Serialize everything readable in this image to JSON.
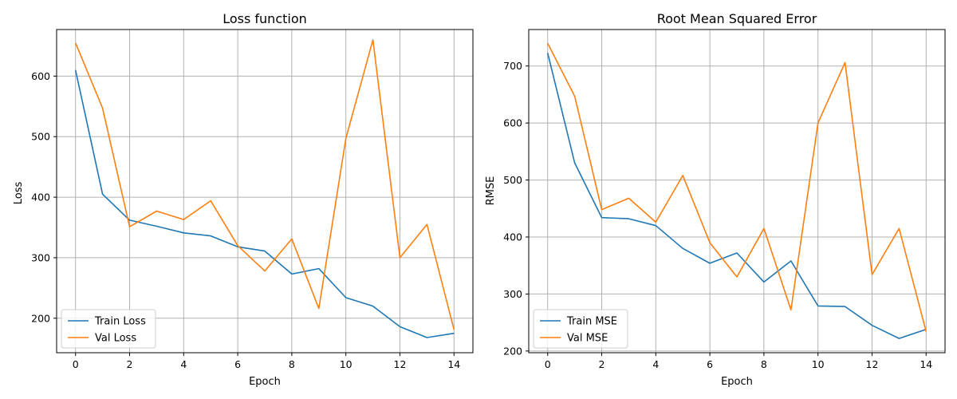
{
  "chart_data": [
    {
      "type": "line",
      "title": "Loss function",
      "xlabel": "Epoch",
      "ylabel": "Loss",
      "x": [
        0,
        1,
        2,
        3,
        4,
        5,
        6,
        7,
        8,
        9,
        10,
        11,
        12,
        13,
        14
      ],
      "xlim": [
        -0.7,
        14.7
      ],
      "ylim": [
        143,
        677
      ],
      "xticks": [
        0,
        2,
        4,
        6,
        8,
        10,
        12,
        14
      ],
      "yticks": [
        200,
        300,
        400,
        500,
        600
      ],
      "grid": true,
      "legend_position": "lower-left",
      "series": [
        {
          "name": "Train Loss",
          "color": "#1f77b4",
          "values": [
            610,
            405,
            362,
            352,
            341,
            336,
            318,
            311,
            273,
            282,
            234,
            220,
            186,
            168,
            175
          ]
        },
        {
          "name": "Val Loss",
          "color": "#ff7f0e",
          "values": [
            655,
            547,
            351,
            377,
            363,
            394,
            320,
            278,
            331,
            216,
            497,
            660,
            300,
            355,
            181
          ]
        }
      ]
    },
    {
      "type": "line",
      "title": "Root Mean Squared Error",
      "xlabel": "Epoch",
      "ylabel": "RMSE",
      "x": [
        0,
        1,
        2,
        3,
        4,
        5,
        6,
        7,
        8,
        9,
        10,
        11,
        12,
        13,
        14
      ],
      "xlim": [
        -0.7,
        14.7
      ],
      "ylim": [
        197,
        764
      ],
      "xticks": [
        0,
        2,
        4,
        6,
        8,
        10,
        12,
        14
      ],
      "yticks": [
        200,
        300,
        400,
        500,
        600,
        700
      ],
      "grid": true,
      "legend_position": "lower-left",
      "series": [
        {
          "name": "Train MSE",
          "color": "#1f77b4",
          "values": [
            723,
            530,
            434,
            432,
            420,
            380,
            354,
            372,
            321,
            358,
            279,
            278,
            245,
            222,
            238
          ]
        },
        {
          "name": "Val MSE",
          "color": "#ff7f0e",
          "values": [
            740,
            647,
            448,
            468,
            426,
            508,
            390,
            330,
            415,
            272,
            600,
            706,
            334,
            415,
            234
          ]
        }
      ]
    }
  ]
}
